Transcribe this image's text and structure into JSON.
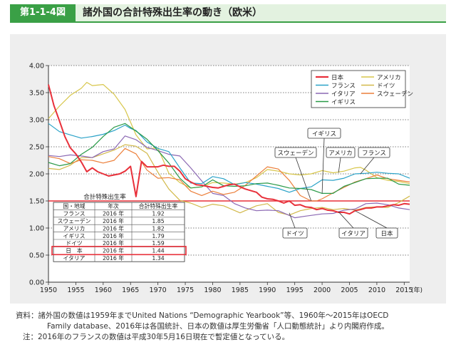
{
  "header": {
    "figure_no": "第1-1-4図",
    "title": "諸外国の合計特殊出生率の動き（欧米）"
  },
  "chart_data": {
    "type": "line",
    "xlim": [
      1950,
      2016
    ],
    "ylim": [
      0,
      4
    ],
    "x_ticks": [
      "1950",
      "1955",
      "1960",
      "1965",
      "1970",
      "1975",
      "1980",
      "1985",
      "1990",
      "1995",
      "2000",
      "2005",
      "2010",
      "2015"
    ],
    "x_unit": "(年)",
    "y_ticks": [
      "0.00",
      "0.50",
      "1.00",
      "1.50",
      "2.00",
      "2.50",
      "3.00",
      "3.50",
      "4.00"
    ],
    "grid": "dotted-horizontal",
    "reference_line": {
      "value": 1.5,
      "color": "#e8303a"
    },
    "legend_position": "top-right",
    "series": [
      {
        "name": "日本",
        "color": "#e8303a",
        "width": 2,
        "points": [
          [
            1950,
            3.65
          ],
          [
            1951,
            3.26
          ],
          [
            1952,
            2.98
          ],
          [
            1953,
            2.69
          ],
          [
            1954,
            2.48
          ],
          [
            1955,
            2.37
          ],
          [
            1956,
            2.22
          ],
          [
            1957,
            2.04
          ],
          [
            1958,
            2.11
          ],
          [
            1959,
            2.04
          ],
          [
            1960,
            2.0
          ],
          [
            1961,
            1.96
          ],
          [
            1962,
            1.98
          ],
          [
            1963,
            2.0
          ],
          [
            1964,
            2.05
          ],
          [
            1965,
            2.14
          ],
          [
            1966,
            1.58
          ],
          [
            1967,
            2.23
          ],
          [
            1968,
            2.13
          ],
          [
            1969,
            2.13
          ],
          [
            1970,
            2.13
          ],
          [
            1971,
            2.16
          ],
          [
            1972,
            2.14
          ],
          [
            1973,
            2.14
          ],
          [
            1974,
            2.05
          ],
          [
            1975,
            1.91
          ],
          [
            1976,
            1.85
          ],
          [
            1977,
            1.8
          ],
          [
            1978,
            1.79
          ],
          [
            1979,
            1.77
          ],
          [
            1980,
            1.75
          ],
          [
            1981,
            1.74
          ],
          [
            1982,
            1.77
          ],
          [
            1983,
            1.8
          ],
          [
            1984,
            1.81
          ],
          [
            1985,
            1.76
          ],
          [
            1986,
            1.72
          ],
          [
            1987,
            1.69
          ],
          [
            1988,
            1.66
          ],
          [
            1989,
            1.57
          ],
          [
            1990,
            1.54
          ],
          [
            1991,
            1.53
          ],
          [
            1992,
            1.5
          ],
          [
            1993,
            1.46
          ],
          [
            1994,
            1.5
          ],
          [
            1995,
            1.42
          ],
          [
            1996,
            1.43
          ],
          [
            1997,
            1.39
          ],
          [
            1998,
            1.38
          ],
          [
            1999,
            1.34
          ],
          [
            2000,
            1.36
          ],
          [
            2001,
            1.33
          ],
          [
            2002,
            1.32
          ],
          [
            2003,
            1.29
          ],
          [
            2004,
            1.29
          ],
          [
            2005,
            1.26
          ],
          [
            2006,
            1.32
          ],
          [
            2007,
            1.34
          ],
          [
            2008,
            1.37
          ],
          [
            2009,
            1.37
          ],
          [
            2010,
            1.39
          ],
          [
            2011,
            1.39
          ],
          [
            2012,
            1.41
          ],
          [
            2013,
            1.43
          ],
          [
            2014,
            1.42
          ],
          [
            2015,
            1.45
          ],
          [
            2016,
            1.44
          ]
        ]
      },
      {
        "name": "アメリカ",
        "color": "#d7c64a",
        "width": 1.2,
        "points": [
          [
            1950,
            3.02
          ],
          [
            1952,
            3.25
          ],
          [
            1954,
            3.45
          ],
          [
            1956,
            3.58
          ],
          [
            1957,
            3.69
          ],
          [
            1958,
            3.63
          ],
          [
            1960,
            3.65
          ],
          [
            1962,
            3.47
          ],
          [
            1964,
            3.19
          ],
          [
            1966,
            2.72
          ],
          [
            1968,
            2.46
          ],
          [
            1970,
            2.48
          ],
          [
            1972,
            2.01
          ],
          [
            1974,
            1.84
          ],
          [
            1976,
            1.74
          ],
          [
            1978,
            1.76
          ],
          [
            1980,
            1.84
          ],
          [
            1982,
            1.83
          ],
          [
            1984,
            1.81
          ],
          [
            1986,
            1.84
          ],
          [
            1988,
            1.93
          ],
          [
            1990,
            2.08
          ],
          [
            1992,
            2.05
          ],
          [
            1994,
            2.0
          ],
          [
            1996,
            1.98
          ],
          [
            1998,
            2.0
          ],
          [
            2000,
            2.06
          ],
          [
            2002,
            2.02
          ],
          [
            2004,
            2.05
          ],
          [
            2006,
            2.11
          ],
          [
            2007,
            2.12
          ],
          [
            2008,
            2.07
          ],
          [
            2010,
            1.93
          ],
          [
            2012,
            1.88
          ],
          [
            2014,
            1.86
          ],
          [
            2016,
            1.82
          ]
        ]
      },
      {
        "name": "フランス",
        "color": "#2aa2c8",
        "width": 1.2,
        "points": [
          [
            1950,
            2.93
          ],
          [
            1952,
            2.78
          ],
          [
            1954,
            2.72
          ],
          [
            1956,
            2.66
          ],
          [
            1958,
            2.69
          ],
          [
            1960,
            2.73
          ],
          [
            1962,
            2.8
          ],
          [
            1964,
            2.9
          ],
          [
            1965,
            2.84
          ],
          [
            1966,
            2.8
          ],
          [
            1968,
            2.59
          ],
          [
            1970,
            2.47
          ],
          [
            1972,
            2.41
          ],
          [
            1974,
            2.11
          ],
          [
            1976,
            1.83
          ],
          [
            1978,
            1.82
          ],
          [
            1980,
            1.95
          ],
          [
            1982,
            1.91
          ],
          [
            1984,
            1.8
          ],
          [
            1986,
            1.84
          ],
          [
            1988,
            1.81
          ],
          [
            1990,
            1.77
          ],
          [
            1992,
            1.73
          ],
          [
            1994,
            1.66
          ],
          [
            1996,
            1.73
          ],
          [
            1998,
            1.76
          ],
          [
            2000,
            1.89
          ],
          [
            2002,
            1.88
          ],
          [
            2004,
            1.92
          ],
          [
            2006,
            2.0
          ],
          [
            2008,
            2.01
          ],
          [
            2010,
            2.03
          ],
          [
            2012,
            2.01
          ],
          [
            2014,
            2.0
          ],
          [
            2016,
            1.92
          ]
        ]
      },
      {
        "name": "ドイツ",
        "color": "#d2b94a",
        "width": 1.2,
        "points": [
          [
            1950,
            2.1
          ],
          [
            1952,
            2.08
          ],
          [
            1954,
            2.16
          ],
          [
            1956,
            2.3
          ],
          [
            1958,
            2.3
          ],
          [
            1960,
            2.37
          ],
          [
            1962,
            2.44
          ],
          [
            1964,
            2.54
          ],
          [
            1966,
            2.51
          ],
          [
            1968,
            2.38
          ],
          [
            1970,
            2.03
          ],
          [
            1972,
            1.72
          ],
          [
            1974,
            1.51
          ],
          [
            1976,
            1.46
          ],
          [
            1978,
            1.38
          ],
          [
            1980,
            1.44
          ],
          [
            1982,
            1.41
          ],
          [
            1985,
            1.28
          ],
          [
            1988,
            1.41
          ],
          [
            1990,
            1.45
          ],
          [
            1992,
            1.29
          ],
          [
            1994,
            1.24
          ],
          [
            1996,
            1.32
          ],
          [
            1998,
            1.36
          ],
          [
            2000,
            1.38
          ],
          [
            2002,
            1.34
          ],
          [
            2004,
            1.36
          ],
          [
            2006,
            1.33
          ],
          [
            2008,
            1.38
          ],
          [
            2010,
            1.39
          ],
          [
            2012,
            1.38
          ],
          [
            2014,
            1.47
          ],
          [
            2016,
            1.59
          ]
        ]
      },
      {
        "name": "イタリア",
        "color": "#8b68b3",
        "width": 1.2,
        "points": [
          [
            1950,
            2.34
          ],
          [
            1952,
            2.32
          ],
          [
            1954,
            2.35
          ],
          [
            1956,
            2.33
          ],
          [
            1958,
            2.3
          ],
          [
            1960,
            2.41
          ],
          [
            1962,
            2.46
          ],
          [
            1964,
            2.7
          ],
          [
            1966,
            2.63
          ],
          [
            1968,
            2.49
          ],
          [
            1970,
            2.43
          ],
          [
            1972,
            2.36
          ],
          [
            1974,
            2.33
          ],
          [
            1976,
            2.11
          ],
          [
            1978,
            1.87
          ],
          [
            1980,
            1.64
          ],
          [
            1982,
            1.6
          ],
          [
            1984,
            1.45
          ],
          [
            1986,
            1.37
          ],
          [
            1988,
            1.32
          ],
          [
            1990,
            1.33
          ],
          [
            1992,
            1.32
          ],
          [
            1995,
            1.19
          ],
          [
            1997,
            1.22
          ],
          [
            2000,
            1.26
          ],
          [
            2002,
            1.27
          ],
          [
            2004,
            1.33
          ],
          [
            2006,
            1.35
          ],
          [
            2008,
            1.45
          ],
          [
            2010,
            1.46
          ],
          [
            2012,
            1.43
          ],
          [
            2014,
            1.37
          ],
          [
            2016,
            1.34
          ]
        ]
      },
      {
        "name": "スウェーデン",
        "color": "#ec7f3a",
        "width": 1.2,
        "points": [
          [
            1950,
            2.32
          ],
          [
            1952,
            2.28
          ],
          [
            1954,
            2.19
          ],
          [
            1956,
            2.26
          ],
          [
            1958,
            2.25
          ],
          [
            1960,
            2.2
          ],
          [
            1962,
            2.25
          ],
          [
            1964,
            2.47
          ],
          [
            1966,
            2.37
          ],
          [
            1968,
            2.07
          ],
          [
            1970,
            1.92
          ],
          [
            1972,
            1.93
          ],
          [
            1974,
            1.89
          ],
          [
            1976,
            1.68
          ],
          [
            1978,
            1.6
          ],
          [
            1980,
            1.68
          ],
          [
            1982,
            1.62
          ],
          [
            1984,
            1.66
          ],
          [
            1986,
            1.79
          ],
          [
            1988,
            1.96
          ],
          [
            1990,
            2.13
          ],
          [
            1992,
            2.09
          ],
          [
            1994,
            1.88
          ],
          [
            1996,
            1.6
          ],
          [
            1998,
            1.5
          ],
          [
            1999,
            1.5
          ],
          [
            2000,
            1.54
          ],
          [
            2002,
            1.65
          ],
          [
            2004,
            1.75
          ],
          [
            2006,
            1.85
          ],
          [
            2008,
            1.91
          ],
          [
            2010,
            1.98
          ],
          [
            2012,
            1.91
          ],
          [
            2014,
            1.88
          ],
          [
            2016,
            1.85
          ]
        ]
      },
      {
        "name": "イギリス",
        "color": "#2a9a48",
        "width": 1.2,
        "points": [
          [
            1950,
            2.21
          ],
          [
            1952,
            2.15
          ],
          [
            1954,
            2.19
          ],
          [
            1956,
            2.36
          ],
          [
            1958,
            2.49
          ],
          [
            1960,
            2.69
          ],
          [
            1962,
            2.86
          ],
          [
            1964,
            2.93
          ],
          [
            1966,
            2.79
          ],
          [
            1968,
            2.64
          ],
          [
            1970,
            2.43
          ],
          [
            1972,
            2.2
          ],
          [
            1974,
            1.92
          ],
          [
            1976,
            1.74
          ],
          [
            1978,
            1.76
          ],
          [
            1980,
            1.89
          ],
          [
            1982,
            1.78
          ],
          [
            1984,
            1.77
          ],
          [
            1986,
            1.78
          ],
          [
            1988,
            1.82
          ],
          [
            1990,
            1.83
          ],
          [
            1992,
            1.79
          ],
          [
            1994,
            1.74
          ],
          [
            1996,
            1.73
          ],
          [
            1998,
            1.71
          ],
          [
            2000,
            1.64
          ],
          [
            2002,
            1.64
          ],
          [
            2004,
            1.77
          ],
          [
            2006,
            1.84
          ],
          [
            2008,
            1.91
          ],
          [
            2010,
            1.92
          ],
          [
            2012,
            1.92
          ],
          [
            2014,
            1.81
          ],
          [
            2016,
            1.79
          ]
        ]
      }
    ],
    "callouts": [
      {
        "label": "イギリス",
        "target": [
          2000,
          1.64
        ]
      },
      {
        "label": "スウェーデン",
        "target": [
          1998,
          1.5
        ]
      },
      {
        "label": "アメリカ",
        "target": [
          2003,
          2.02
        ]
      },
      {
        "label": "フランス",
        "target": [
          2007,
          2.0
        ]
      },
      {
        "label": "ドイツ",
        "target": [
          1994,
          1.28
        ]
      },
      {
        "label": "イタリア",
        "target": [
          2003,
          1.3
        ]
      },
      {
        "label": "日本",
        "target": [
          2006,
          1.32
        ]
      }
    ],
    "table": {
      "title": "合計特殊出生率",
      "headers": [
        "国・地域",
        "年次",
        "合計特殊出生率"
      ],
      "rows": [
        [
          "フランス",
          "2016 年",
          "1.92"
        ],
        [
          "スウェーデン",
          "2016 年",
          "1.85"
        ],
        [
          "アメリカ",
          "2016 年",
          "1.82"
        ],
        [
          "イギリス",
          "2016 年",
          "1.79"
        ],
        [
          "ドイツ",
          "2016 年",
          "1.59"
        ],
        [
          "日　本",
          "2016 年",
          "1.44"
        ],
        [
          "イタリア",
          "2016 年",
          "1.34"
        ]
      ],
      "highlight_row": 5
    }
  },
  "notes": {
    "source_label": "資料：",
    "source_line1": "諸外国の数値は1959年までUnited Nations “Demographic Yearbook”等、1960年～2015年はOECD",
    "source_line2": "Family database、2016年は各国統計、日本の数値は厚生労働省「人口動態統計」より内閣府作成。",
    "note_label": "注：",
    "note_text": "2016年のフランスの数値は平成30年5月16日現在で暫定値となっている。"
  }
}
